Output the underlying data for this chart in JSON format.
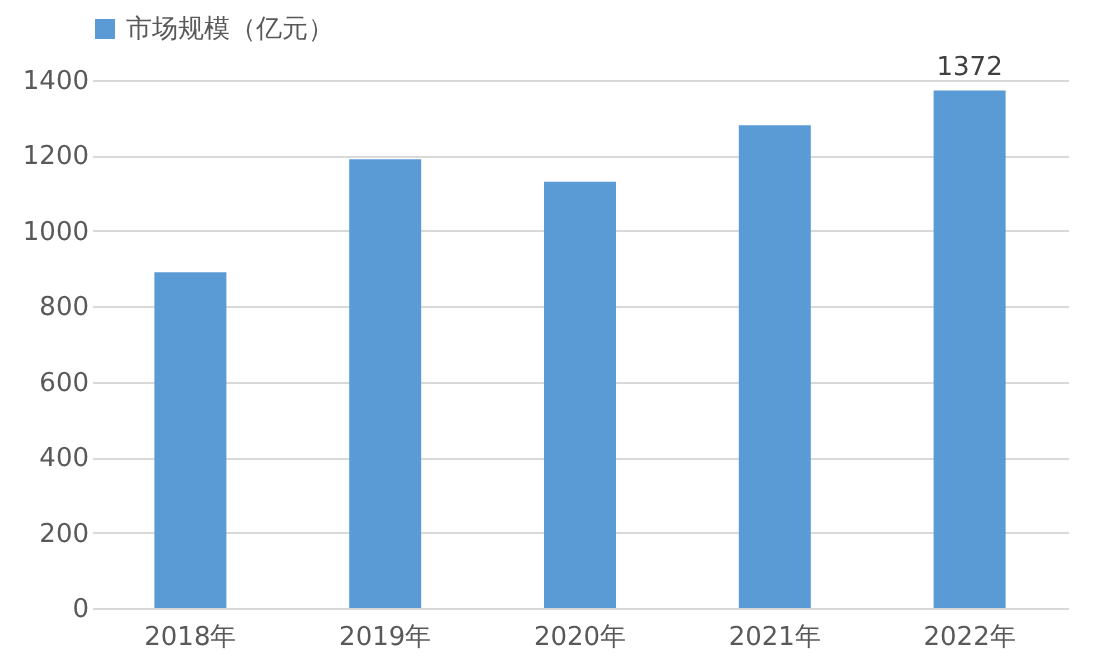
{
  "chart_data": {
    "type": "bar",
    "categories": [
      "2018年",
      "2019年",
      "2020年",
      "2021年",
      "2022年"
    ],
    "series": [
      {
        "name": "市场规模（亿元）",
        "color": "#5b9bd5",
        "values": [
          890,
          1190,
          1130,
          1280,
          1372
        ],
        "value_labels": [
          null,
          null,
          null,
          null,
          "1372"
        ]
      }
    ],
    "ylim": [
      0,
      1400
    ],
    "yticks": [
      0,
      200,
      400,
      600,
      800,
      1000,
      1200,
      1400
    ],
    "grid": "y",
    "legend": "top"
  }
}
